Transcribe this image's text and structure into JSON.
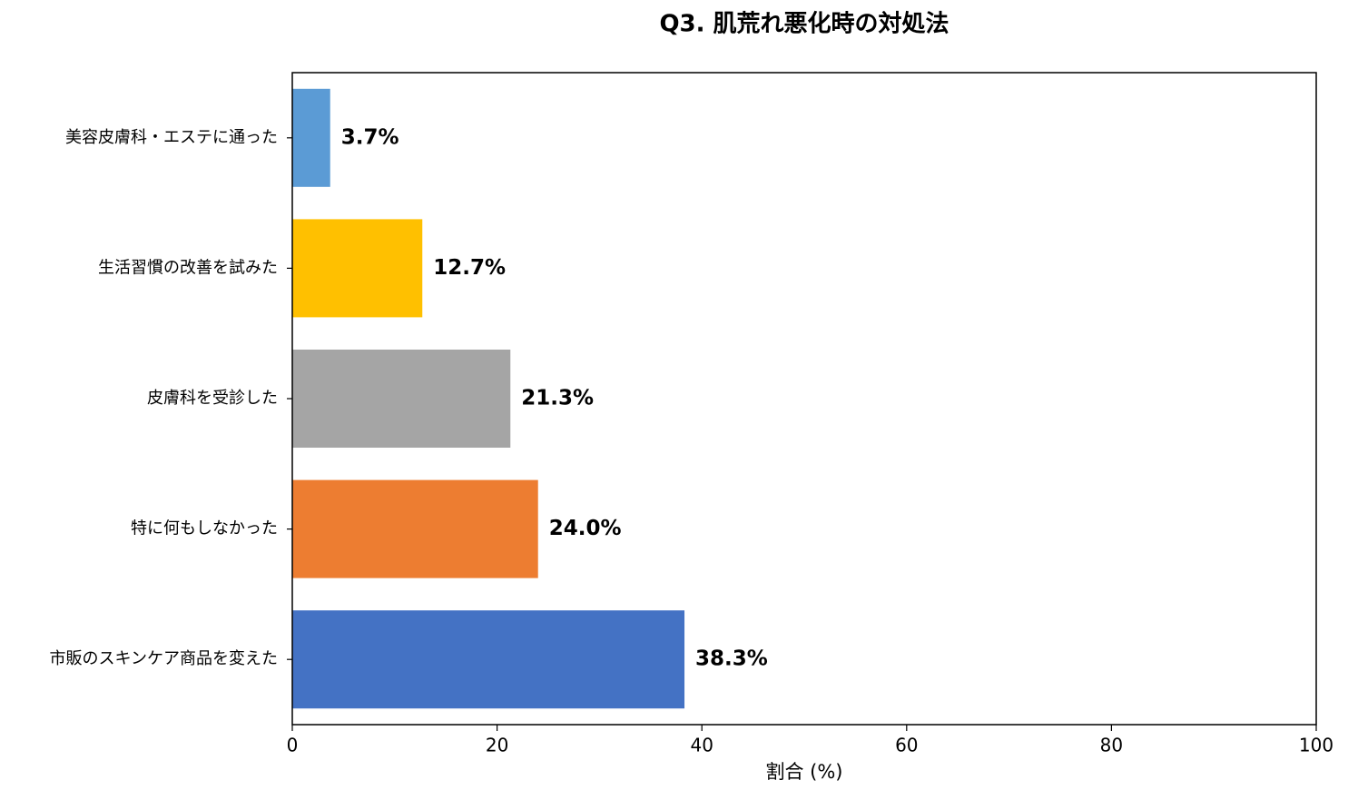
{
  "chart_data": {
    "type": "barh",
    "title": "Q3. 肌荒れ悪化時の対処法",
    "xlabel": "割合 (%)",
    "categories": [
      "市販のスキンケア商品を変えた",
      "特に何もしなかった",
      "皮膚科を受診した",
      "生活習慣の改善を試みた",
      "美容皮膚科・エステに通った"
    ],
    "values": [
      38.3,
      24.0,
      21.3,
      12.7,
      3.7
    ],
    "value_labels": [
      "38.3%",
      "24.0%",
      "21.3%",
      "12.7%",
      "3.7%"
    ],
    "colors": [
      "#4472c4",
      "#ed7d31",
      "#a5a5a5",
      "#ffc000",
      "#5b9bd5"
    ],
    "xlim": [
      0,
      100
    ],
    "xticks": [
      0,
      20,
      40,
      60,
      80,
      100
    ]
  }
}
